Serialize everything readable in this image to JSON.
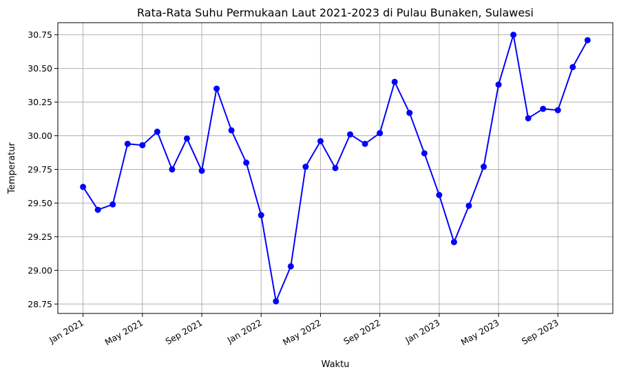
{
  "chart_data": {
    "type": "line",
    "title": "Rata-Rata Suhu Permukaan Laut 2021-2023 di Pulau Bunaken, Sulawesi",
    "xlabel": "Waktu",
    "ylabel": "Temperatur",
    "ylim": [
      28.68,
      30.84
    ],
    "y_ticks": [
      "28.75",
      "29.00",
      "29.25",
      "29.50",
      "29.75",
      "30.00",
      "30.25",
      "30.50",
      "30.75"
    ],
    "x_ticks": [
      "Jan 2021",
      "May 2021",
      "Sep 2021",
      "Jan 2022",
      "May 2022",
      "Sep 2022",
      "Jan 2023",
      "May 2023",
      "Sep 2023"
    ],
    "grid": true,
    "colors": {
      "line": "#0000ff",
      "grid": "#b0b0b0"
    },
    "series": [
      {
        "x": [
          "2021-01",
          "2021-02",
          "2021-03",
          "2021-04",
          "2021-05",
          "2021-06",
          "2021-07",
          "2021-08",
          "2021-09",
          "2021-10",
          "2021-11",
          "2021-12",
          "2022-01",
          "2022-02",
          "2022-03",
          "2022-04",
          "2022-05",
          "2022-06",
          "2022-07",
          "2022-08",
          "2022-09",
          "2022-10",
          "2022-11",
          "2022-12",
          "2023-01",
          "2023-02",
          "2023-03",
          "2023-04",
          "2023-05",
          "2023-06",
          "2023-07",
          "2023-08",
          "2023-09",
          "2023-10",
          "2023-11"
        ],
        "values": [
          29.62,
          29.45,
          29.49,
          29.94,
          29.93,
          30.03,
          29.75,
          29.98,
          29.74,
          30.35,
          30.04,
          29.8,
          29.41,
          28.77,
          29.03,
          29.77,
          29.96,
          29.76,
          30.01,
          29.94,
          30.02,
          30.4,
          30.17,
          29.87,
          29.56,
          29.21,
          29.48,
          29.77,
          30.38,
          30.75,
          30.13,
          30.2,
          30.19,
          30.51,
          30.71
        ]
      }
    ]
  }
}
